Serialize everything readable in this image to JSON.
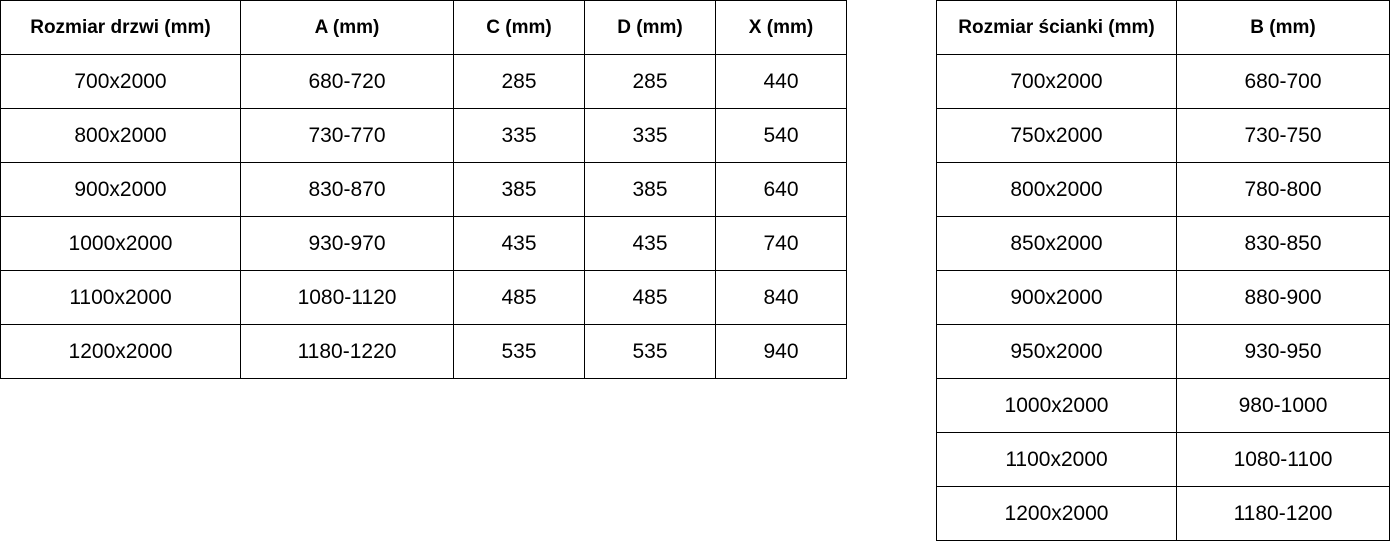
{
  "doors_table": {
    "headers": [
      "Rozmiar drzwi (mm)",
      "A (mm)",
      "C (mm)",
      "D (mm)",
      "X (mm)"
    ],
    "rows": [
      [
        "700x2000",
        "680-720",
        "285",
        "285",
        "440"
      ],
      [
        "800x2000",
        "730-770",
        "335",
        "335",
        "540"
      ],
      [
        "900x2000",
        "830-870",
        "385",
        "385",
        "640"
      ],
      [
        "1000x2000",
        "930-970",
        "435",
        "435",
        "740"
      ],
      [
        "1100x2000",
        "1080-1120",
        "485",
        "485",
        "840"
      ],
      [
        "1200x2000",
        "1180-1220",
        "535",
        "535",
        "940"
      ]
    ]
  },
  "walls_table": {
    "headers": [
      "Rozmiar ścianki (mm)",
      "B (mm)"
    ],
    "rows": [
      [
        "700x2000",
        "680-700"
      ],
      [
        "750x2000",
        "730-750"
      ],
      [
        "800x2000",
        "780-800"
      ],
      [
        "850x2000",
        "830-850"
      ],
      [
        "900x2000",
        "880-900"
      ],
      [
        "950x2000",
        "930-950"
      ],
      [
        "1000x2000",
        "980-1000"
      ],
      [
        "1100x2000",
        "1080-1100"
      ],
      [
        "1200x2000",
        "1180-1200"
      ]
    ]
  }
}
